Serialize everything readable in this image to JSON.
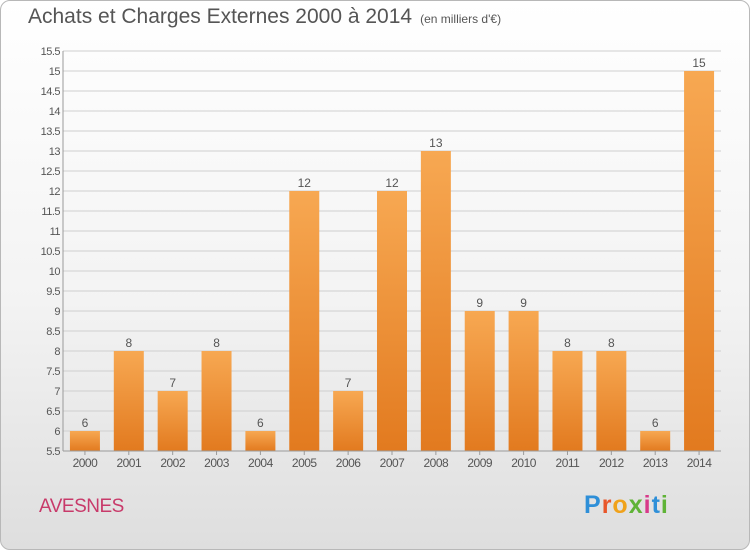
{
  "title": "Achats et Charges Externes 2000 à 2014",
  "unit_note": "(en milliers d'€)",
  "location": "AVESNES",
  "brand": "Proxiti",
  "colors": {
    "bar_light": "#f7a852",
    "bar_dark": "#e27a1f",
    "grid": "#cfcfcf",
    "text": "#555555",
    "location": "#c83a6a"
  },
  "chart_data": {
    "type": "bar",
    "title": "Achats et Charges Externes 2000 à 2014",
    "subtitle": "(en milliers d'€)",
    "xlabel": "",
    "ylabel": "",
    "categories": [
      "2000",
      "2001",
      "2002",
      "2003",
      "2004",
      "2005",
      "2006",
      "2007",
      "2008",
      "2009",
      "2010",
      "2011",
      "2012",
      "2013",
      "2014"
    ],
    "values": [
      6,
      8,
      7,
      8,
      6,
      12,
      7,
      12,
      13,
      9,
      9,
      8,
      8,
      6,
      15
    ],
    "ylim": [
      5.5,
      15.5
    ],
    "yticks": [
      "5.5",
      "6",
      "6.5",
      "7",
      "7.5",
      "8",
      "8.5",
      "9",
      "9.5",
      "10",
      "10.5",
      "11",
      "11.5",
      "12",
      "12.5",
      "13",
      "13.5",
      "14",
      "14.5",
      "15",
      "15.5"
    ],
    "grid": true,
    "legend": "none"
  }
}
